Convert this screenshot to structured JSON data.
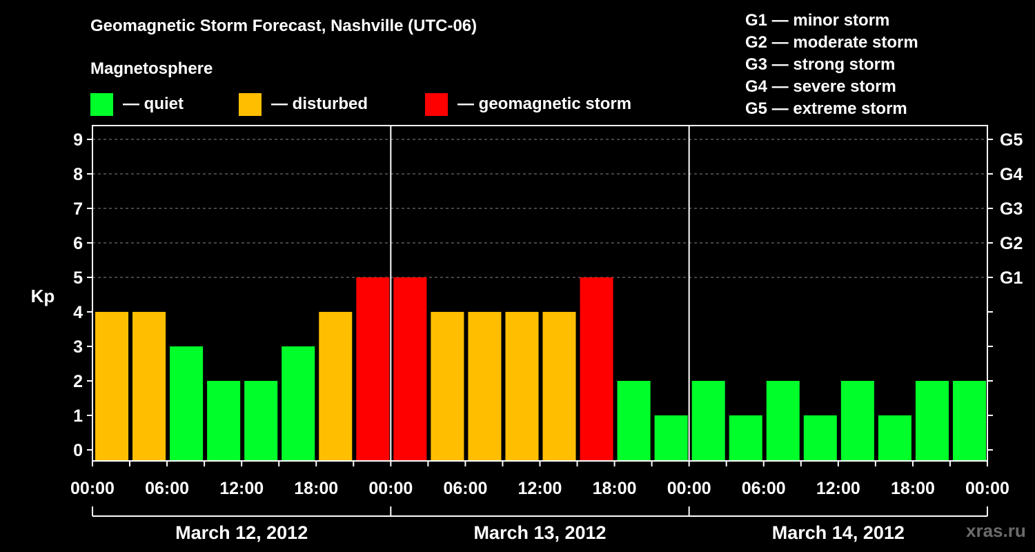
{
  "title": "Geomagnetic Storm Forecast, Nashville (UTC-06)",
  "legend": {
    "heading": "Magnetosphere",
    "items": [
      {
        "label": "— quiet",
        "color": "#00ff2a"
      },
      {
        "label": "— disturbed",
        "color": "#ffbf00"
      },
      {
        "label": "— geomagnetic storm",
        "color": "#ff0000"
      }
    ]
  },
  "g_scale": [
    "G1 — minor storm",
    "G2 — moderate storm",
    "G3 — strong storm",
    "G4 — severe storm",
    "G5 — extreme storm"
  ],
  "watermark": "xras.ru",
  "chart_data": {
    "type": "bar",
    "ylabel": "Kp",
    "ylim": [
      0,
      9
    ],
    "y_ticks": [
      "0",
      "1",
      "2",
      "3",
      "4",
      "5",
      "6",
      "7",
      "8",
      "9"
    ],
    "y2_ticks": [
      {
        "value": 5,
        "label": "G1"
      },
      {
        "value": 6,
        "label": "G2"
      },
      {
        "value": 7,
        "label": "G3"
      },
      {
        "value": 8,
        "label": "G4"
      },
      {
        "value": 9,
        "label": "G5"
      }
    ],
    "x_tick_labels": [
      "00:00",
      "06:00",
      "12:00",
      "18:00",
      "00:00",
      "06:00",
      "12:00",
      "18:00",
      "00:00",
      "06:00",
      "12:00",
      "18:00",
      "00:00"
    ],
    "days": [
      "March 12, 2012",
      "March 13, 2012",
      "March 14, 2012"
    ],
    "values": [
      4,
      4,
      3,
      2,
      2,
      3,
      4,
      5,
      5,
      4,
      4,
      4,
      4,
      5,
      2,
      1,
      2,
      1,
      2,
      1,
      2,
      1,
      2,
      2
    ],
    "grid": "dashed horizontal at 5-9",
    "colors": {
      "quiet": "#00ff2a",
      "disturbed": "#ffbf00",
      "storm": "#ff0000"
    }
  }
}
